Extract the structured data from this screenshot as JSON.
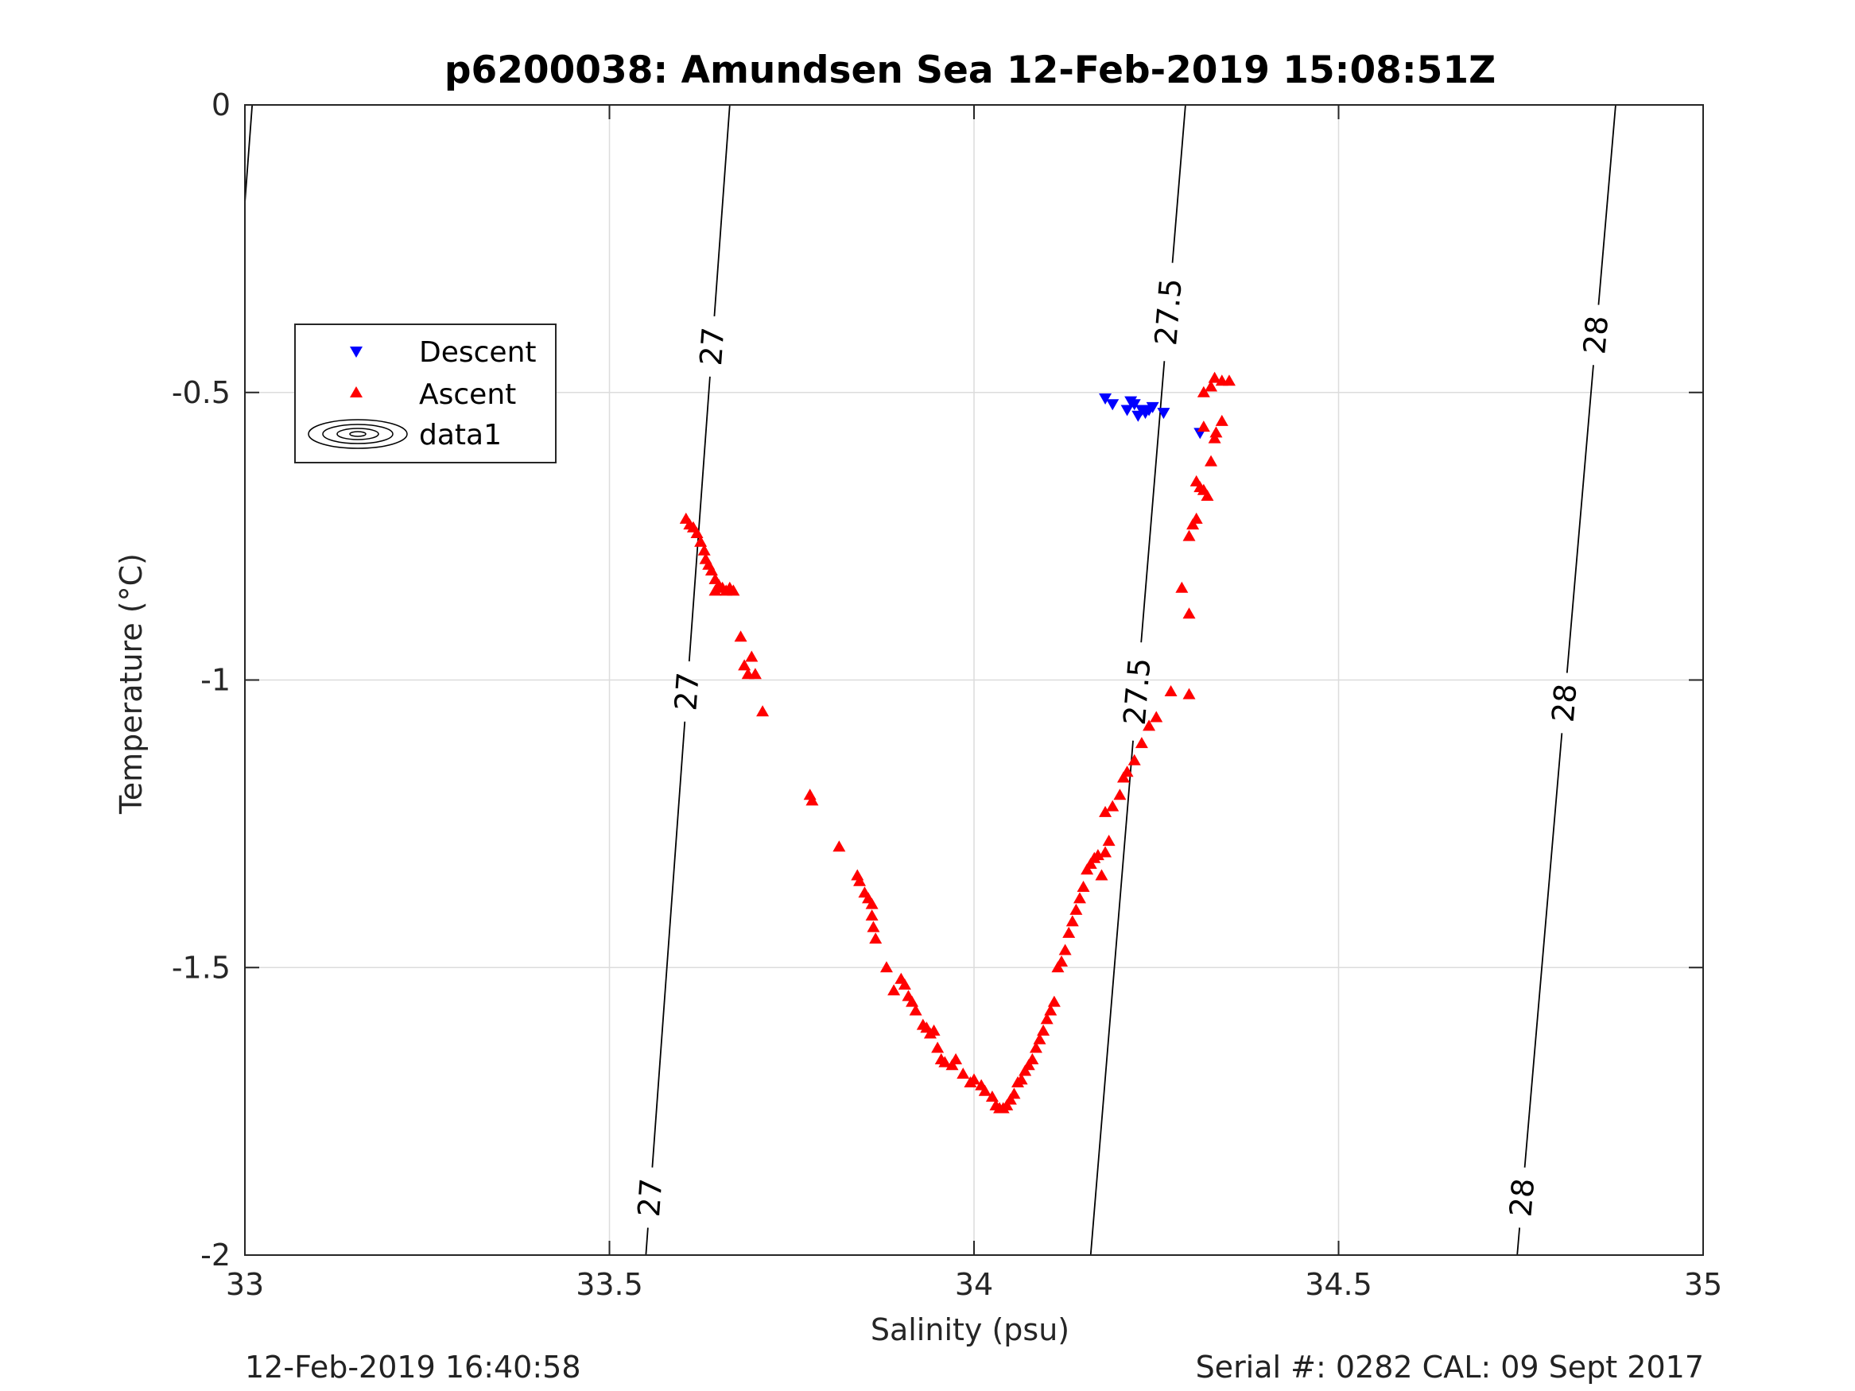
{
  "chart_data": {
    "type": "scatter",
    "title": "p6200038: Amundsen Sea 12-Feb-2019 15:08:51Z",
    "xlabel": "Salinity (psu)",
    "ylabel": "Temperature (°C)",
    "xlim": [
      33,
      35
    ],
    "ylim": [
      -2,
      0
    ],
    "xticks": [
      33,
      33.5,
      34,
      34.5,
      35
    ],
    "xtick_labels": [
      "33",
      "33.5",
      "34",
      "34.5",
      "35"
    ],
    "yticks": [
      0,
      -0.5,
      -1,
      -1.5,
      -2
    ],
    "ytick_labels": [
      "0",
      "-0.5",
      "-1",
      "-1.5",
      "-2"
    ],
    "grid": true,
    "legend_position": "upper-left",
    "legend": [
      "Descent",
      "Ascent",
      "data1"
    ],
    "series": [
      {
        "name": "Descent",
        "marker": "triangle-down",
        "color": "#0000ff",
        "points": [
          [
            34.18,
            -0.51
          ],
          [
            34.19,
            -0.52
          ],
          [
            34.21,
            -0.53
          ],
          [
            34.215,
            -0.515
          ],
          [
            34.22,
            -0.52
          ],
          [
            34.225,
            -0.54
          ],
          [
            34.23,
            -0.53
          ],
          [
            34.235,
            -0.535
          ],
          [
            34.24,
            -0.53
          ],
          [
            34.245,
            -0.525
          ],
          [
            34.26,
            -0.535
          ],
          [
            34.31,
            -0.57
          ]
        ]
      },
      {
        "name": "Ascent",
        "marker": "triangle-up",
        "color": "#ff0000",
        "points": [
          [
            33.605,
            -0.72
          ],
          [
            33.61,
            -0.73
          ],
          [
            33.615,
            -0.735
          ],
          [
            33.62,
            -0.745
          ],
          [
            33.625,
            -0.76
          ],
          [
            33.63,
            -0.775
          ],
          [
            33.632,
            -0.79
          ],
          [
            33.636,
            -0.8
          ],
          [
            33.64,
            -0.81
          ],
          [
            33.645,
            -0.825
          ],
          [
            33.65,
            -0.835
          ],
          [
            33.645,
            -0.845
          ],
          [
            33.655,
            -0.84
          ],
          [
            33.66,
            -0.845
          ],
          [
            33.665,
            -0.84
          ],
          [
            33.67,
            -0.845
          ],
          [
            33.68,
            -0.925
          ],
          [
            33.685,
            -0.975
          ],
          [
            33.69,
            -0.99
          ],
          [
            33.695,
            -0.96
          ],
          [
            33.7,
            -0.99
          ],
          [
            33.71,
            -1.055
          ],
          [
            33.775,
            -1.2
          ],
          [
            33.778,
            -1.21
          ],
          [
            33.815,
            -1.29
          ],
          [
            33.84,
            -1.34
          ],
          [
            33.843,
            -1.35
          ],
          [
            33.85,
            -1.37
          ],
          [
            33.855,
            -1.38
          ],
          [
            33.86,
            -1.39
          ],
          [
            33.86,
            -1.41
          ],
          [
            33.862,
            -1.43
          ],
          [
            33.865,
            -1.45
          ],
          [
            33.88,
            -1.5
          ],
          [
            33.89,
            -1.54
          ],
          [
            33.9,
            -1.52
          ],
          [
            33.905,
            -1.53
          ],
          [
            33.91,
            -1.55
          ],
          [
            33.915,
            -1.56
          ],
          [
            33.92,
            -1.575
          ],
          [
            33.93,
            -1.6
          ],
          [
            33.935,
            -1.605
          ],
          [
            33.94,
            -1.615
          ],
          [
            33.945,
            -1.61
          ],
          [
            33.95,
            -1.64
          ],
          [
            33.955,
            -1.66
          ],
          [
            33.96,
            -1.665
          ],
          [
            33.97,
            -1.67
          ],
          [
            33.975,
            -1.66
          ],
          [
            33.985,
            -1.685
          ],
          [
            33.995,
            -1.7
          ],
          [
            34.0,
            -1.695
          ],
          [
            34.01,
            -1.705
          ],
          [
            34.015,
            -1.715
          ],
          [
            34.025,
            -1.725
          ],
          [
            34.03,
            -1.74
          ],
          [
            34.035,
            -1.745
          ],
          [
            34.04,
            -1.745
          ],
          [
            34.045,
            -1.74
          ],
          [
            34.05,
            -1.73
          ],
          [
            34.055,
            -1.72
          ],
          [
            34.06,
            -1.7
          ],
          [
            34.065,
            -1.695
          ],
          [
            34.07,
            -1.68
          ],
          [
            34.075,
            -1.67
          ],
          [
            34.08,
            -1.66
          ],
          [
            34.085,
            -1.64
          ],
          [
            34.09,
            -1.625
          ],
          [
            34.095,
            -1.61
          ],
          [
            34.1,
            -1.59
          ],
          [
            34.105,
            -1.575
          ],
          [
            34.11,
            -1.56
          ],
          [
            34.115,
            -1.5
          ],
          [
            34.12,
            -1.49
          ],
          [
            34.125,
            -1.47
          ],
          [
            34.13,
            -1.44
          ],
          [
            34.135,
            -1.42
          ],
          [
            34.14,
            -1.4
          ],
          [
            34.145,
            -1.38
          ],
          [
            34.15,
            -1.36
          ],
          [
            34.155,
            -1.33
          ],
          [
            34.16,
            -1.32
          ],
          [
            34.165,
            -1.31
          ],
          [
            34.17,
            -1.305
          ],
          [
            34.175,
            -1.34
          ],
          [
            34.18,
            -1.3
          ],
          [
            34.185,
            -1.28
          ],
          [
            34.18,
            -1.23
          ],
          [
            34.19,
            -1.22
          ],
          [
            34.2,
            -1.2
          ],
          [
            34.205,
            -1.17
          ],
          [
            34.21,
            -1.16
          ],
          [
            34.22,
            -1.14
          ],
          [
            34.23,
            -1.11
          ],
          [
            34.24,
            -1.08
          ],
          [
            34.25,
            -1.065
          ],
          [
            34.27,
            -1.02
          ],
          [
            34.295,
            -1.025
          ],
          [
            34.295,
            -0.885
          ],
          [
            34.285,
            -0.84
          ],
          [
            34.295,
            -0.75
          ],
          [
            34.3,
            -0.73
          ],
          [
            34.305,
            -0.72
          ],
          [
            34.305,
            -0.655
          ],
          [
            34.31,
            -0.665
          ],
          [
            34.315,
            -0.67
          ],
          [
            34.32,
            -0.68
          ],
          [
            34.325,
            -0.62
          ],
          [
            34.33,
            -0.58
          ],
          [
            34.332,
            -0.57
          ],
          [
            34.34,
            -0.55
          ],
          [
            34.315,
            -0.5
          ],
          [
            34.325,
            -0.49
          ],
          [
            34.33,
            -0.475
          ],
          [
            34.34,
            -0.48
          ],
          [
            34.35,
            -0.48
          ],
          [
            34.315,
            -0.56
          ]
        ]
      }
    ],
    "contours": [
      {
        "label": "27",
        "points": [
          [
            33.665,
            0
          ],
          [
            33.55,
            -2
          ]
        ],
        "label_t": [
          0.21,
          0.51,
          0.95
        ]
      },
      {
        "label": "27.5",
        "points": [
          [
            34.29,
            0
          ],
          [
            34.16,
            -2
          ]
        ],
        "label_t": [
          0.18,
          0.51
        ]
      },
      {
        "label": "28",
        "points": [
          [
            34.88,
            0
          ],
          [
            34.745,
            -2
          ]
        ],
        "label_t": [
          0.2,
          0.52,
          0.95
        ]
      },
      {
        "label": "",
        "points": [
          [
            33.01,
            0
          ],
          [
            33.0,
            -0.17
          ]
        ],
        "label_t": []
      }
    ]
  },
  "footer": {
    "timestamp": "12-Feb-2019 16:40:58",
    "serial": "Serial #: 0282  CAL: 09 Sept 2017"
  }
}
